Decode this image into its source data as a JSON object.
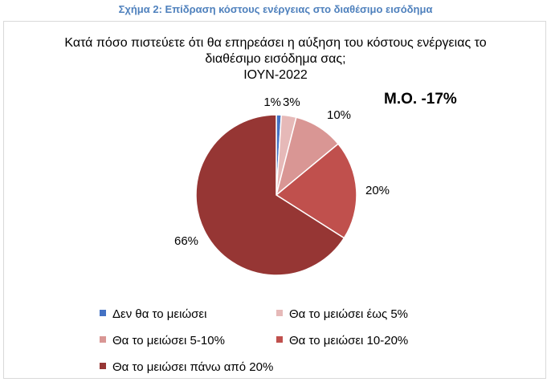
{
  "figure_caption": "Σχήμα 2: Επίδραση κόστους ενέργειας στο διαθέσιμο εισόδημα",
  "average_label": "Μ.Ο. -17%",
  "chart_data": {
    "type": "pie",
    "title_lines": [
      "Κατά πόσο πιστεύετε ότι θα επηρεάσει η αύξηση του κόστους ενέργειας το",
      "διαθέσιμο εισόδημα σας;",
      "ΙΟΥΝ-2022"
    ],
    "categories": [
      "Δεν θα το μειώσει",
      "Θα το μειώσει έως 5%",
      "Θα το μειώσει 5-10%",
      "Θα το μειώσει 10-20%",
      "Θα το μειώσει πάνω από 20%"
    ],
    "values": [
      1,
      3,
      10,
      20,
      66
    ],
    "data_labels": [
      "1%",
      "3%",
      "10%",
      "20%",
      "66%"
    ],
    "colors": [
      "#4472c4",
      "#e6b9b8",
      "#d99694",
      "#c0504d",
      "#963634"
    ],
    "legend_position": "bottom"
  }
}
